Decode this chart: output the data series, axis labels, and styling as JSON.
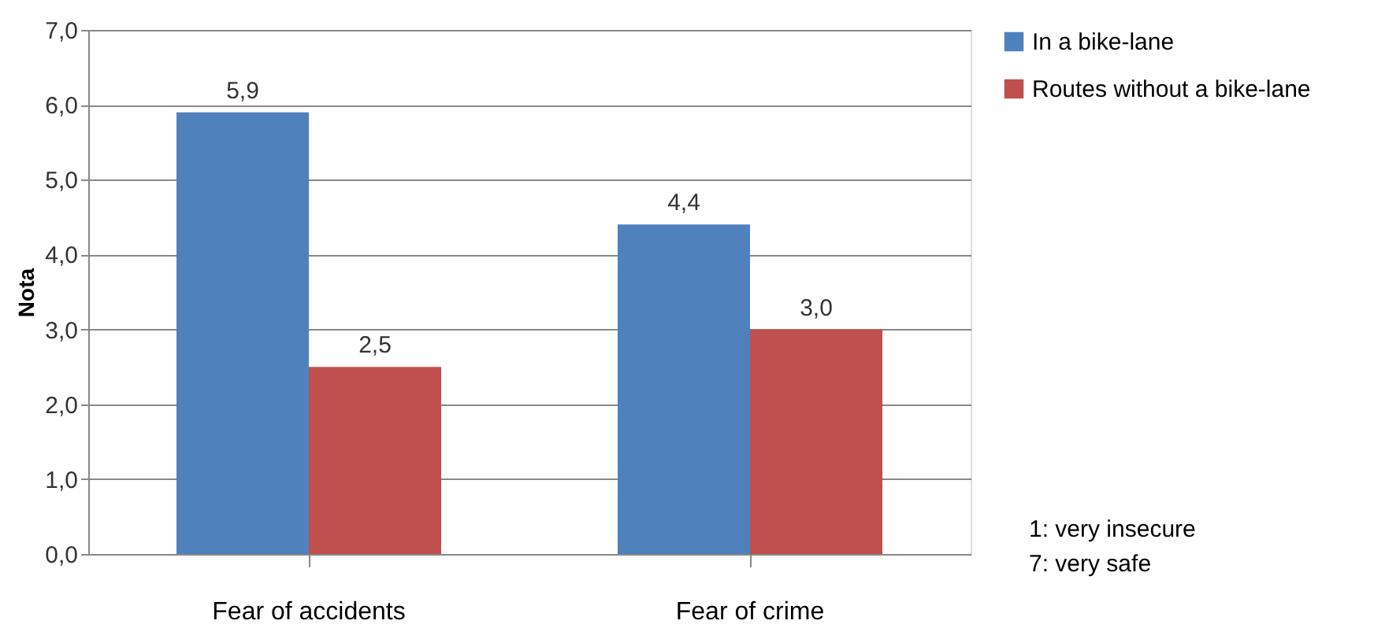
{
  "chart_data": {
    "type": "bar",
    "ylabel": "Nota",
    "categories": [
      "Fear of accidents",
      "Fear of crime"
    ],
    "series": [
      {
        "name": "In a bike-lane",
        "color": "#4f81bd",
        "values": [
          5.9,
          4.4
        ],
        "value_labels": [
          "5,9",
          "4,4"
        ]
      },
      {
        "name": "Routes without a bike-lane",
        "color": "#c0504d",
        "values": [
          2.5,
          3.0
        ],
        "value_labels": [
          "2,5",
          "3,0"
        ]
      }
    ],
    "ylim": [
      0,
      7
    ],
    "yticks": [
      {
        "value": 0,
        "label": "0,0"
      },
      {
        "value": 1,
        "label": "1,0"
      },
      {
        "value": 2,
        "label": "2,0"
      },
      {
        "value": 3,
        "label": "3,0"
      },
      {
        "value": 4,
        "label": "4,0"
      },
      {
        "value": 5,
        "label": "5,0"
      },
      {
        "value": 6,
        "label": "6,0"
      },
      {
        "value": 7,
        "label": "7,0"
      }
    ],
    "grid": "y",
    "legend": "right",
    "annotations": [
      "1: very insecure",
      "7: very safe"
    ]
  }
}
